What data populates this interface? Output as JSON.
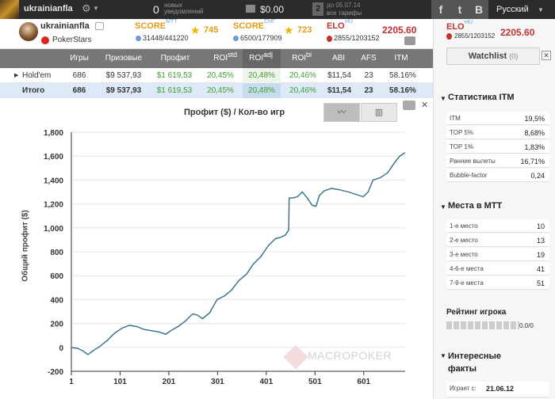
{
  "topbar": {
    "username": "ukrainianfla",
    "notifications_count": "0",
    "notifications_label": "новых уведомлений",
    "balance": "$0.00",
    "tariff_number": "2",
    "tariff_date": "до 05.07.14",
    "tariff_link": "все тарифы",
    "social": [
      "f",
      "t",
      "B"
    ],
    "language": "Русский"
  },
  "player": {
    "name": "ukrainianfla",
    "room": "PokerStars",
    "score_mtt_label": "SCORE",
    "score_mtt_sup": "MTT",
    "score_mtt_rank": "31448/441220",
    "score_mtt_stars": "745",
    "score_sng_label": "SCORE",
    "score_sng_sup": "СНГ",
    "score_sng_rank": "6500/177909",
    "score_sng_stars": "723",
    "elo_label": "ELO",
    "elo_sup": "HU",
    "elo_rank": "2855/1203152",
    "elo_value": "2205.60"
  },
  "table": {
    "headers": [
      "Игры",
      "Призовые",
      "Профит",
      "ROI",
      "ROI",
      "ROI",
      "ABI",
      "AFS",
      "ITM"
    ],
    "header_sups": [
      "std",
      "adj",
      "bi"
    ],
    "rows": [
      {
        "name": "Hold'em",
        "games": "686",
        "prize": "$9 537,93",
        "profit": "$1 619,53",
        "roi_std": "20,45%",
        "roi_adj": "20,48%",
        "roi_bi": "20,46%",
        "abi": "$11,54",
        "afs": "23",
        "itm": "58.16%"
      },
      {
        "name": "Итого",
        "games": "686",
        "prize": "$9 537,93",
        "profit": "$1 619,53",
        "roi_std": "20,45%",
        "roi_adj": "20,48%",
        "roi_bi": "20,46%",
        "abi": "$11,54",
        "afs": "23",
        "itm": "58.16%"
      }
    ]
  },
  "chart": {
    "title": "Профит ($) / Кол-во игр",
    "watermark": "MACROPOKER"
  },
  "chart_data": {
    "type": "line",
    "title": "Профит ($) / Кол-во игр",
    "xlabel": "",
    "ylabel": "Общий профит ($)",
    "xlim": [
      1,
      686
    ],
    "ylim": [
      -200,
      1800
    ],
    "xticks": [
      1,
      101,
      201,
      301,
      401,
      501,
      601
    ],
    "yticks": [
      -200,
      0,
      200,
      400,
      600,
      800,
      1000,
      1200,
      1400,
      1600,
      1800
    ],
    "grid": true,
    "series": [
      {
        "x": [
          1,
          15,
          25,
          35,
          45,
          60,
          75,
          90,
          105,
          120,
          135,
          150,
          165,
          180,
          195,
          205,
          220,
          235,
          250,
          260,
          270,
          285,
          300,
          315,
          330,
          345,
          360,
          375,
          390,
          405,
          420,
          430,
          440,
          447,
          448,
          455,
          465,
          475,
          485,
          495,
          503,
          510,
          520,
          535,
          550,
          560,
          570,
          585,
          600,
          610,
          620,
          635,
          650,
          665,
          675,
          686
        ],
        "y": [
          0,
          -10,
          -30,
          -60,
          -30,
          10,
          60,
          120,
          160,
          185,
          175,
          150,
          140,
          130,
          110,
          140,
          175,
          220,
          280,
          270,
          240,
          290,
          400,
          430,
          480,
          560,
          610,
          700,
          760,
          850,
          910,
          920,
          940,
          980,
          1250,
          1250,
          1260,
          1300,
          1250,
          1190,
          1180,
          1270,
          1310,
          1330,
          1320,
          1310,
          1300,
          1280,
          1260,
          1300,
          1400,
          1420,
          1460,
          1550,
          1600,
          1630
        ]
      }
    ]
  },
  "sidebar": {
    "elo_label": "ELO",
    "elo_sup": "HU",
    "elo_rank": "2855/1203152",
    "elo_value": "2205.60",
    "watchlist_label": "Watchlist",
    "watchlist_count": "(0)",
    "itm_title": "Статистика ITM",
    "itm_rows": [
      {
        "k": "ITM",
        "v": "19,5%"
      },
      {
        "k": "TOP 5%",
        "v": "8,68%"
      },
      {
        "k": "TOP 1%",
        "v": "1,83%"
      },
      {
        "k": "Ранние вылеты",
        "v": "16,71%"
      },
      {
        "k": "Bubble-factor",
        "v": "0,24"
      }
    ],
    "places_title": "Места в МТТ",
    "places_rows": [
      {
        "k": "1-е место",
        "v": "10"
      },
      {
        "k": "2-е место",
        "v": "13"
      },
      {
        "k": "3-е место",
        "v": "19"
      },
      {
        "k": "4-6-е места",
        "v": "41"
      },
      {
        "k": "7-9-е места",
        "v": "51"
      }
    ],
    "rating_title": "Рейтинг игрока",
    "rating_value": "0.0/0",
    "facts_title": "Интересные факты",
    "facts_label": "Играет с:",
    "facts_value": "21.06.12"
  }
}
